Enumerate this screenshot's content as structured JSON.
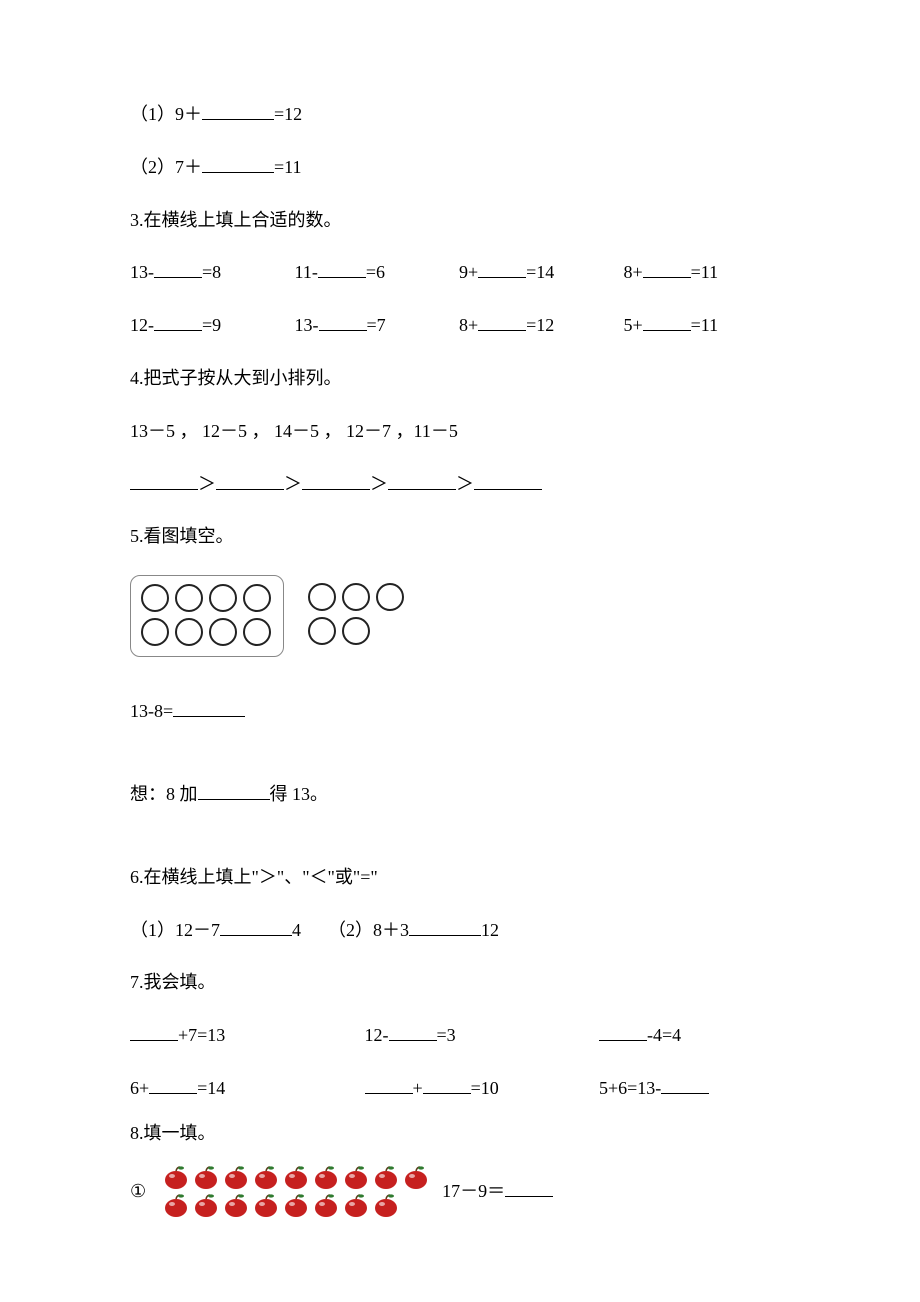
{
  "q1": {
    "label_1": "（1）9＋",
    "eq_1": "=12",
    "label_2": "（2）7＋",
    "eq_2": "=11"
  },
  "q3": {
    "title": "3.在横线上填上合适的数。",
    "row1": {
      "c1a": "13-",
      "c1b": "=8",
      "c2a": "11-",
      "c2b": "=6",
      "c3a": "9+",
      "c3b": "=14",
      "c4a": "8+",
      "c4b": "=11"
    },
    "row2": {
      "c1a": "12-",
      "c1b": "=9",
      "c2a": "13-",
      "c2b": "=7",
      "c3a": "8+",
      "c3b": "=12",
      "c4a": "5+",
      "c4b": "=11"
    }
  },
  "q4": {
    "title": "4.把式子按从大到小排列。",
    "expr": "13－5 ， 12－5 ， 14－5 ， 12－7 ，11－5",
    "gt": "＞"
  },
  "q5": {
    "title": "5.看图填空。",
    "eq": "13-8=",
    "hint_a": "想：8 加",
    "hint_b": "得 13。",
    "circles_box": 8,
    "circles_loose": 5
  },
  "q6": {
    "title": "6.在横线上填上\"＞\"、\"＜\"或\"=\"",
    "p1a": "（1）12－7",
    "p1b": "4",
    "p2a": "（2）8＋3",
    "p2b": "12"
  },
  "q7": {
    "title": "7.我会填。",
    "r1": {
      "c1b": "+7=13",
      "c2a": "12-",
      "c2b": "=3",
      "c3b": "-4=4"
    },
    "r2": {
      "c1a": "6+",
      "c1b": "=14",
      "c2mid": "+",
      "c2b": "=10",
      "c3a": "5+6=13-"
    }
  },
  "q8": {
    "title": "8.填一填。",
    "marker": "①",
    "eq_a": "17－9＝",
    "apples": {
      "row1_count": 9,
      "row2_count": 8,
      "color": "#c6201f",
      "leaf": "#2f7a2f"
    }
  },
  "colors": {
    "text": "#000000",
    "bg": "#ffffff",
    "circle_border": "#222222"
  }
}
